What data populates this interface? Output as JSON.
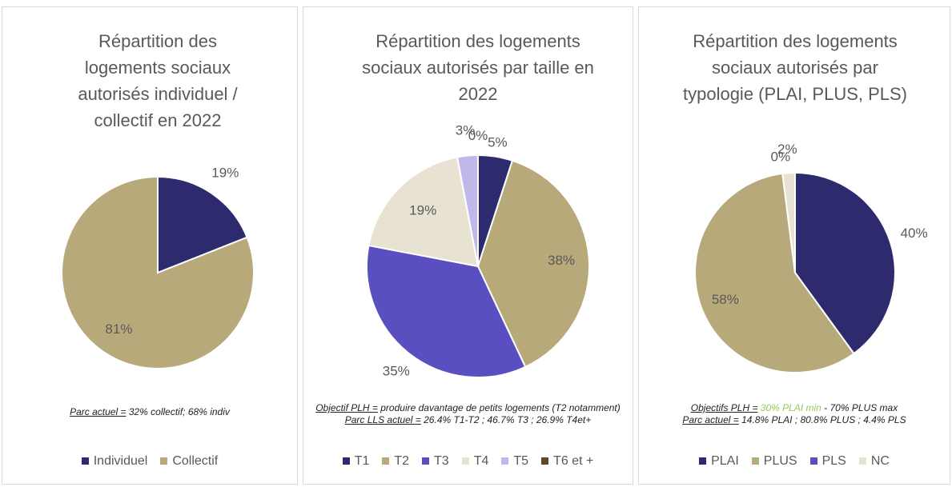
{
  "chart_data": [
    {
      "type": "pie",
      "title": "Répartition des logements sociaux autorisés individuel / collectif en 2022",
      "categories": [
        "Individuel",
        "Collectif"
      ],
      "values": [
        19,
        81
      ],
      "value_labels": [
        "19%",
        "81%"
      ],
      "colors": [
        "#2e2a6e",
        "#b8a97a"
      ],
      "notes": [
        [
          {
            "text": "Parc actuel =",
            "underline": true
          },
          {
            "text": " 32% collectif; 68% indiv"
          }
        ]
      ]
    },
    {
      "type": "pie",
      "title": "Répartition des logements sociaux autorisés par taille en 2022",
      "categories": [
        "T1",
        "T2",
        "T3",
        "T4",
        "T5",
        "T6 et +"
      ],
      "values": [
        5,
        38,
        35,
        19,
        3,
        0
      ],
      "value_labels": [
        "5%",
        "38%",
        "35%",
        "19%",
        "3%",
        "0%"
      ],
      "colors": [
        "#2e2a6e",
        "#b8a97a",
        "#5a4fc0",
        "#e8e2d2",
        "#bfb8e8",
        "#5e4a2a"
      ],
      "notes": [
        [
          {
            "text": "Objectif PLH =",
            "underline": true
          },
          {
            "text": " produire davantage de petits logements (T2 notamment)"
          }
        ],
        [
          {
            "text": "Parc LLS actuel =",
            "underline": true
          },
          {
            "text": " 26.4% T1-T2 ; 46.7% T3 ; 26.9% T4et+"
          }
        ]
      ]
    },
    {
      "type": "pie",
      "title": "Répartition des logements sociaux autorisés par typologie (PLAI, PLUS, PLS)",
      "categories": [
        "PLAI",
        "PLUS",
        "PLS",
        "NC"
      ],
      "values": [
        40,
        58,
        0,
        2
      ],
      "value_labels": [
        "40%",
        "58%",
        "0%",
        "2%"
      ],
      "colors": [
        "#2e2a6e",
        "#b8a97a",
        "#5a4fc0",
        "#e8e2d2"
      ],
      "notes": [
        [
          {
            "text": "Objectifs PLH =",
            "underline": true
          },
          {
            "text": " 30% PLAI min",
            "color": "#8fce5a"
          },
          {
            "text": " - 70% PLUS max"
          }
        ],
        [
          {
            "text": "Parc actuel =",
            "underline": true
          },
          {
            "text": " 14.8% PLAI ; 80.8% PLUS ; 4.4% PLS"
          }
        ]
      ]
    }
  ]
}
